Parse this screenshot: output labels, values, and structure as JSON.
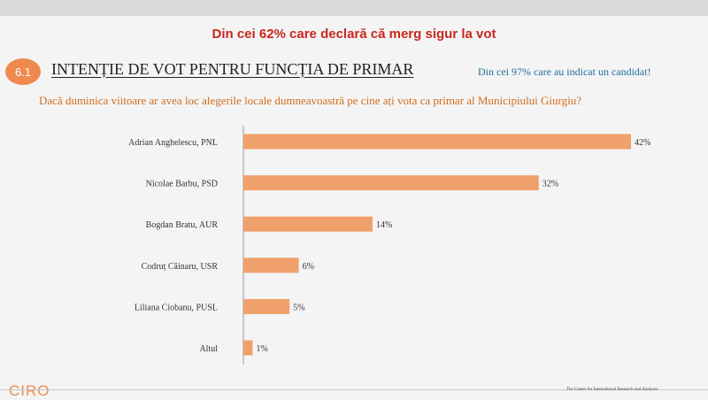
{
  "header": {
    "headline": "Din cei 62% care declară că merg sigur la vot",
    "section_number": "6.1",
    "section_title": "INTENȚIE DE VOT PENTRU FUNCȚIA DE PRIMAR",
    "note": "Din cei 97% care au indicat un candidat!",
    "question": "Dacă duminica viitoare ar avea loc alegerile locale dumneavoastră pe cine ați vota ca primar al Municipiului Giurgiu?"
  },
  "footer": {
    "logo": "CIRO",
    "text": "The Center for International Research and Analyses"
  },
  "colors": {
    "bar": "#f0a06a",
    "headline": "#c8281e",
    "badge": "#ee8a4e",
    "note": "#1f6e9e",
    "question": "#cf6d1e"
  },
  "chart_data": {
    "type": "bar",
    "orientation": "horizontal",
    "title": "INTENȚIE DE VOT PENTRU FUNCȚIA DE PRIMAR",
    "xlabel": "",
    "ylabel": "",
    "xlim": [
      0,
      42
    ],
    "unit": "%",
    "categories": [
      "Adrian Anghelescu, PNL",
      "Nicolae Barbu, PSD",
      "Bogdan Bratu, AUR",
      "Codruț Căinaru, USR",
      "Liliana Ciobanu, PUSL",
      "Altul"
    ],
    "values": [
      42,
      32,
      14,
      6,
      5,
      1
    ],
    "labels": [
      "42%",
      "32%",
      "14%",
      "6%",
      "5%",
      "1%"
    ]
  }
}
